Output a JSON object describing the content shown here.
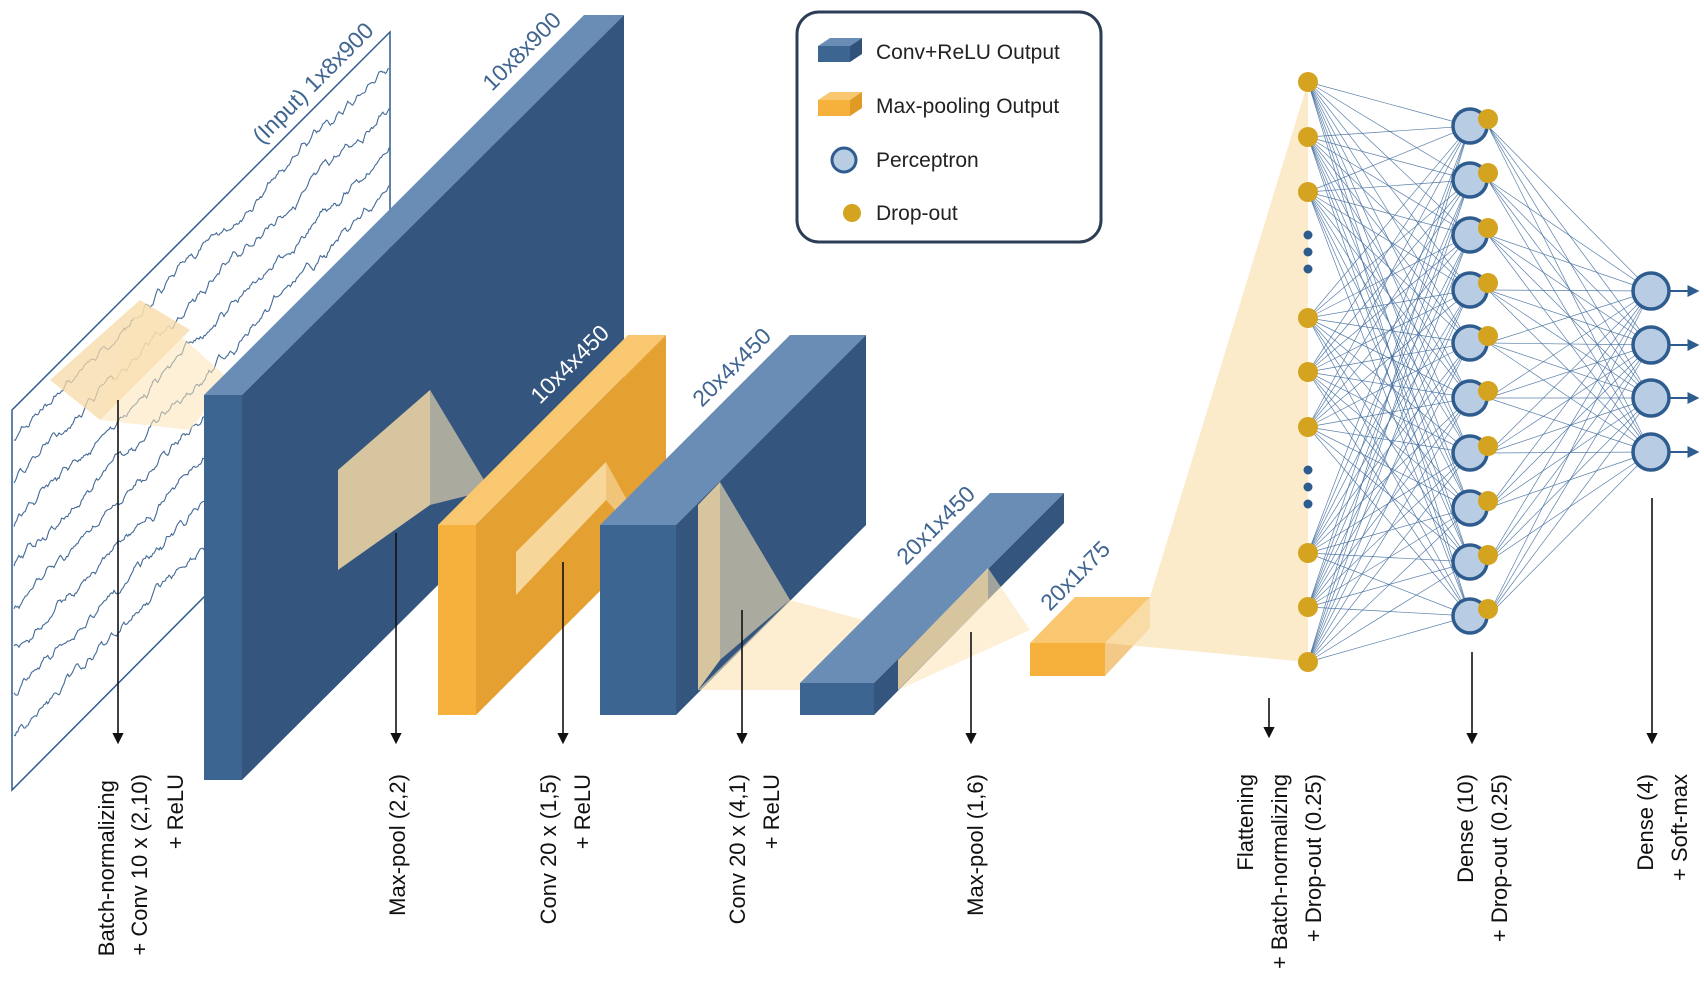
{
  "legend": {
    "items": [
      {
        "id": "conv",
        "label": "Conv+ReLU Output",
        "icon": "blue-block-icon",
        "color": "#3d6592"
      },
      {
        "id": "pool",
        "label": "Max-pooling Output",
        "icon": "orange-block-icon",
        "color": "#f5b13c"
      },
      {
        "id": "perceptron",
        "label": "Perceptron",
        "icon": "perceptron-circle-icon",
        "color": "#b8cde3"
      },
      {
        "id": "dropout",
        "label": "Drop-out",
        "icon": "dropout-dot-icon",
        "color": "#d4a320"
      }
    ]
  },
  "blocks": {
    "input": "(Input) 1x8x900",
    "conv1": "10x8x900",
    "pool1": "10x4x450",
    "conv2": "20x4x450",
    "conv3": "20x1x450",
    "pool2": "20x1x75"
  },
  "operations": [
    {
      "id": "op1",
      "lines": [
        "Batch-normalizing",
        "+ Conv 10 x (2,10)",
        "+ ReLU"
      ]
    },
    {
      "id": "op2",
      "lines": [
        "Max-pool (2,2)"
      ]
    },
    {
      "id": "op3",
      "lines": [
        "Conv 20 x (1,5)",
        "+ ReLU"
      ]
    },
    {
      "id": "op4",
      "lines": [
        "Conv 20 x (4,1)",
        "+ ReLU"
      ]
    },
    {
      "id": "op5",
      "lines": [
        "Max-pool (1,6)"
      ]
    },
    {
      "id": "op6",
      "lines": [
        "Flattening",
        "+ Batch-normalizing",
        "+ Drop-out (0.25)"
      ]
    },
    {
      "id": "op7",
      "lines": [
        "Dense (10)",
        "+ Drop-out (0.25)"
      ]
    },
    {
      "id": "op8",
      "lines": [
        "Dense (4)",
        "+ Soft-max"
      ]
    }
  ],
  "colors": {
    "conv_front": "#3d6592",
    "conv_top": "#6a8db5",
    "conv_side": "#30527a",
    "pool_front": "#f5b13c",
    "pool_top": "#f8c770",
    "pool_side": "#e09a26",
    "projection": "#fbe3b4",
    "perceptron_fill": "#b8cde3",
    "perceptron_stroke": "#2f5c8f",
    "dropout": "#d4a320",
    "signal": "#2f5a8c"
  }
}
